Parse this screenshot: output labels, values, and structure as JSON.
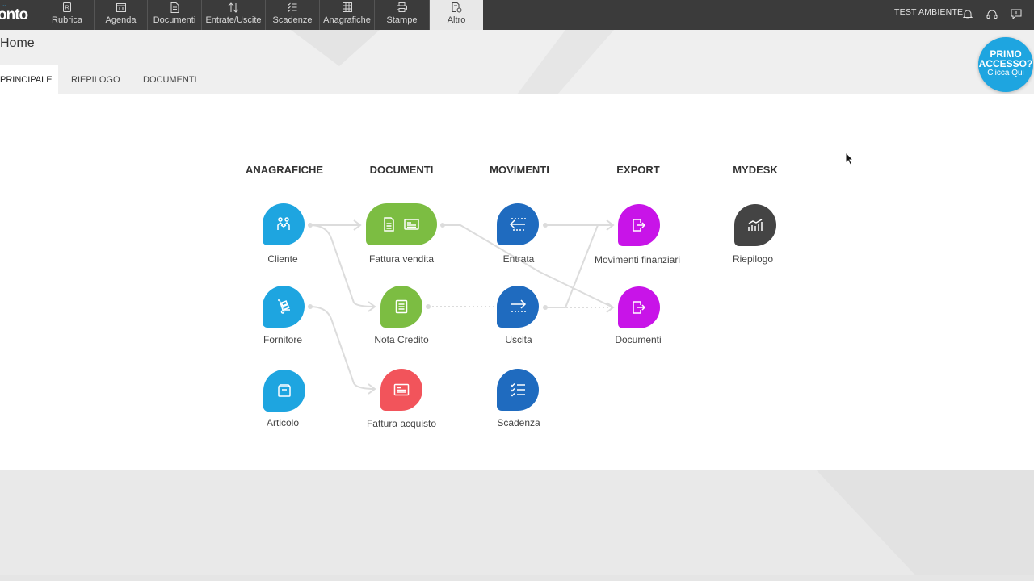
{
  "app": {
    "logo_text": "onto",
    "environment": "TEST AMBIENTE"
  },
  "colors": {
    "topbar": "#3b3b3b",
    "anagrafiche": "#1ea5e0",
    "documenti_green": "#7cbd42",
    "documenti_red": "#f2545b",
    "movimenti": "#1f6bbf",
    "export": "#c814e8",
    "mydesk": "#444444",
    "primo_accesso": "#1ea5e0"
  },
  "nav": [
    {
      "label": "Rubrica",
      "icon": "contact-book-icon"
    },
    {
      "label": "Agenda",
      "icon": "calendar-icon"
    },
    {
      "label": "Documenti",
      "icon": "document-icon"
    },
    {
      "label": "Entrate/Uscite",
      "icon": "arrows-up-down-icon"
    },
    {
      "label": "Scadenze",
      "icon": "checklist-icon"
    },
    {
      "label": "Anagrafiche",
      "icon": "grid-icon"
    },
    {
      "label": "Stampe",
      "icon": "printer-icon"
    },
    {
      "label": "Altro",
      "icon": "document-settings-icon"
    }
  ],
  "page": {
    "title": "Home",
    "tabs": [
      "PRINCIPALE",
      "RIEPILOGO",
      "DOCUMENTI"
    ],
    "active_tab": "PRINCIPALE"
  },
  "primo_accesso": {
    "line1": "PRIMO",
    "line2": "ACCESSO?",
    "line3": "Clicca Qui"
  },
  "columns": {
    "anagrafiche": "ANAGRAFICHE",
    "documenti": "DOCUMENTI",
    "movimenti": "MOVIMENTI",
    "export": "EXPORT",
    "mydesk": "MYDESK"
  },
  "nodes": {
    "cliente": "Cliente",
    "fornitore": "Fornitore",
    "articolo": "Articolo",
    "fattura_vendita": "Fattura vendita",
    "nota_credito": "Nota Credito",
    "fattura_acquisto": "Fattura acquisto",
    "entrata": "Entrata",
    "uscita": "Uscita",
    "scadenza": "Scadenza",
    "movimenti_finanziari": "Movimenti finanziari",
    "documenti_export": "Documenti",
    "riepilogo": "Riepilogo"
  }
}
